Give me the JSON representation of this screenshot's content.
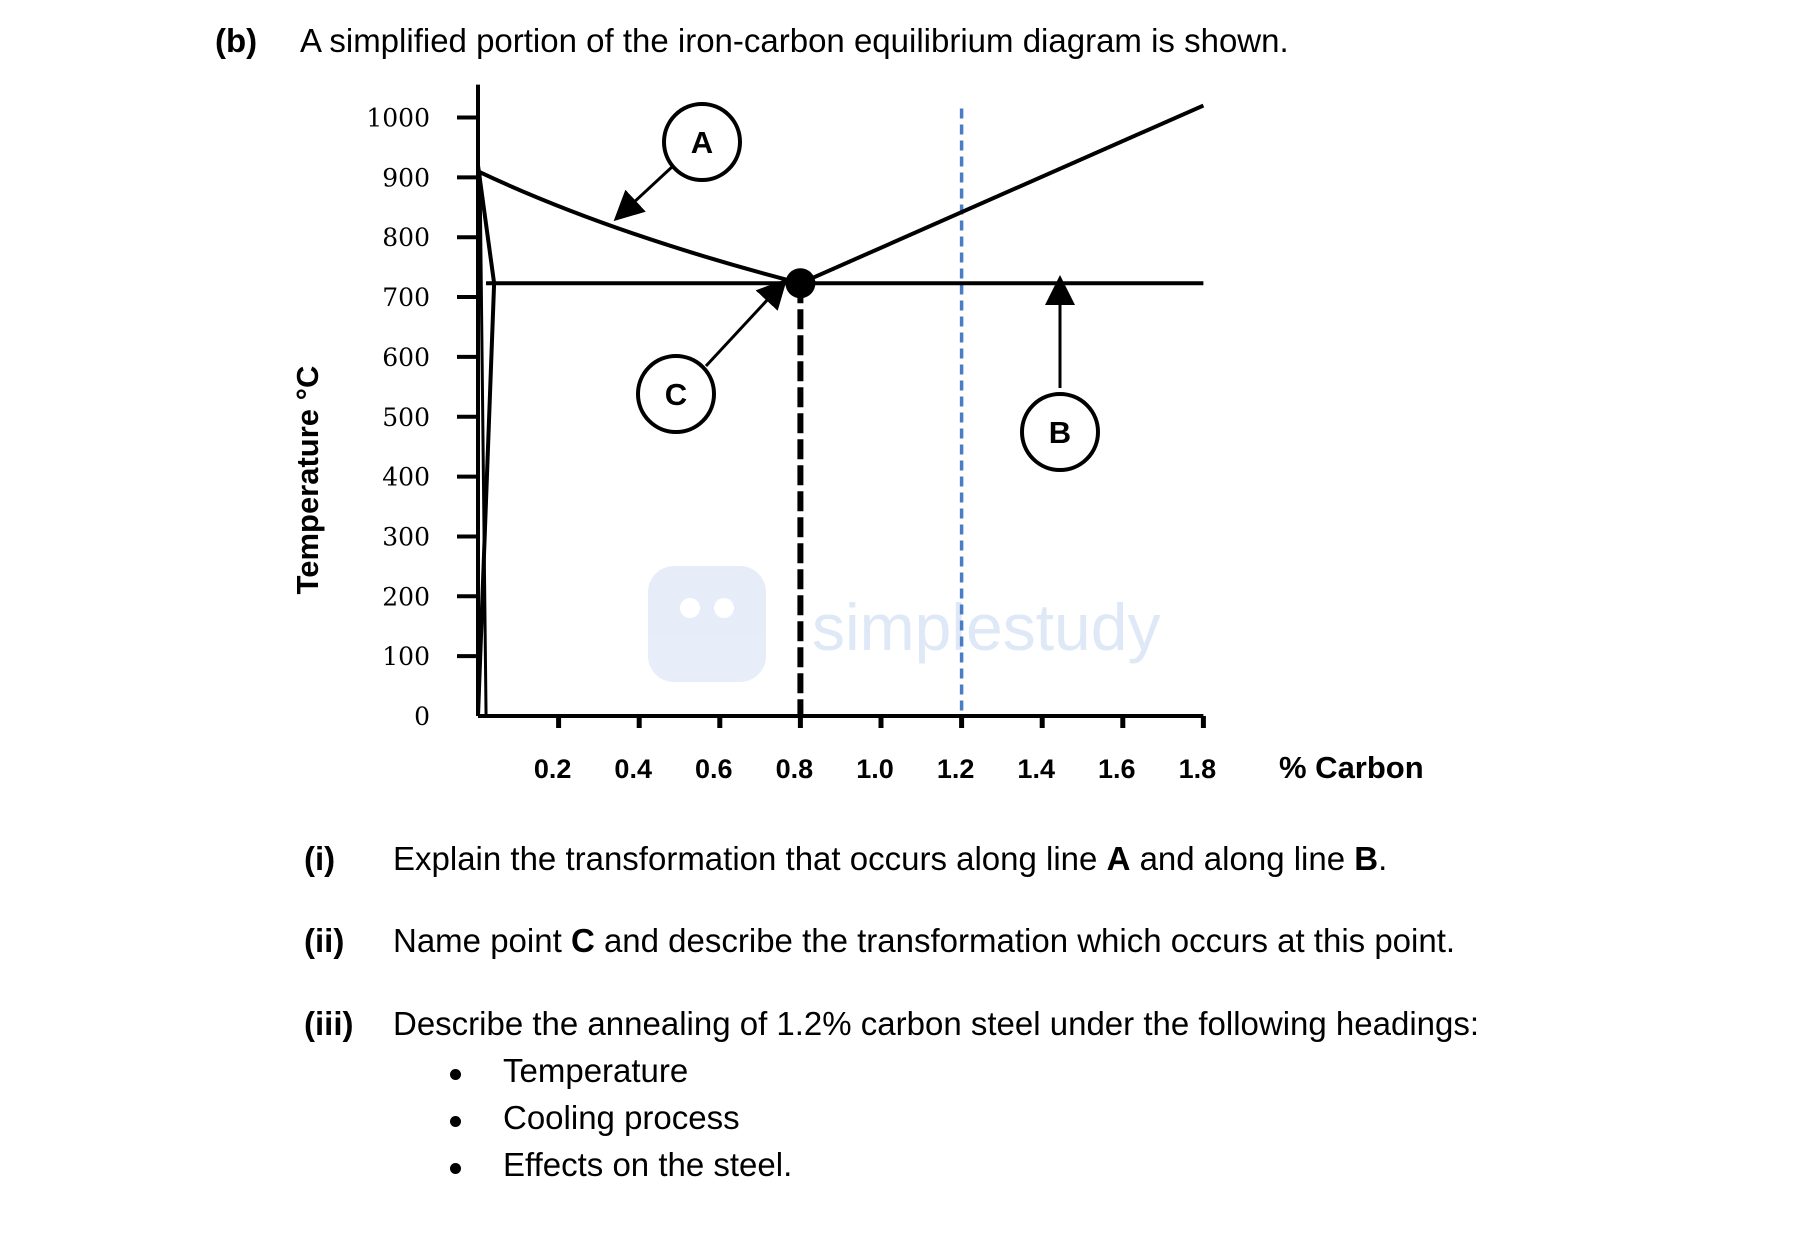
{
  "header": {
    "part": "(b)",
    "intro": "A simplified portion of the iron-carbon equilibrium diagram is shown."
  },
  "diagram": {
    "y_axis_label": "Temperature °C",
    "x_axis_label": "% Carbon",
    "y_ticks": [
      "1000",
      "900",
      "800",
      "700",
      "600",
      "500",
      "400",
      "300",
      "200",
      "100",
      "0"
    ],
    "x_ticks": [
      "0.2",
      "0.4",
      "0.6",
      "0.8",
      "1.0",
      "1.2",
      "1.4",
      "1.6",
      "1.8"
    ],
    "labels": {
      "a": "A",
      "b": "B",
      "c": "C"
    },
    "watermark": "simplestudy",
    "colors": {
      "dashed_guide": "#4a7cc7",
      "line": "#000000",
      "watermark": "#dbe6f6"
    },
    "data": {
      "eutectoid_point": {
        "carbon": 0.8,
        "temperature": 723
      },
      "guide_line_carbon": 1.2,
      "line_a": [
        [
          0.0,
          910
        ],
        [
          0.4,
          800
        ],
        [
          0.8,
          723
        ]
      ],
      "line_b_acm": [
        [
          0.8,
          723
        ],
        [
          1.8,
          1020
        ]
      ],
      "eutectoid_line": [
        [
          0.02,
          723
        ],
        [
          1.8,
          723
        ]
      ]
    }
  },
  "questions": [
    {
      "num": "(i)",
      "parts": [
        {
          "t": "Explain the transformation that occurs along line ",
          "b": false
        },
        {
          "t": "A",
          "b": true
        },
        {
          "t": " and along line ",
          "b": false
        },
        {
          "t": "B",
          "b": true
        },
        {
          "t": ".",
          "b": false
        }
      ]
    },
    {
      "num": "(ii)",
      "parts": [
        {
          "t": "Name point ",
          "b": false
        },
        {
          "t": "C",
          "b": true
        },
        {
          "t": " and describe the transformation which occurs at this point.",
          "b": false
        }
      ]
    },
    {
      "num": "(iii)",
      "parts": [
        {
          "t": "Describe the annealing of 1.2% carbon steel under the following headings:",
          "b": false
        }
      ]
    }
  ],
  "bullets": [
    "Temperature",
    "Cooling process",
    "Effects on the steel."
  ]
}
